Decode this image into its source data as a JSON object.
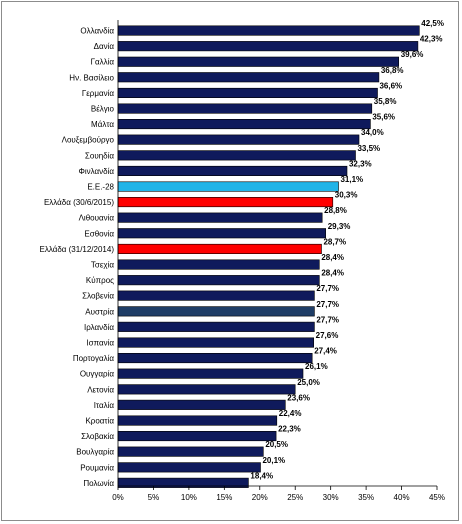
{
  "chart_data": {
    "type": "bar",
    "orientation": "horizontal",
    "categories": [
      "Ολλανδία",
      "Δανία",
      "Γαλλία",
      "Ην. Βασίλειο",
      "Γερμανία",
      "Βέλγιο",
      "Μάλτα",
      "Λουξεμβούργο",
      "Σουηδία",
      "Φινλανδία",
      "Ε.Ε.-28",
      "Ελλάδα (30/6/2015)",
      "Λιθουανία",
      "Εσθονία",
      "Ελλάδα (31/12/2014)",
      "Τσεχία",
      "Κύπρος",
      "Σλοβενία",
      "Αυστρία",
      "Ιρλανδία",
      "Ισπανία",
      "Πορτογαλία",
      "Ουγγαρία",
      "Λετονία",
      "Ιταλία",
      "Κροατία",
      "Σλοβακία",
      "Βουλγαρία",
      "Ρουμανία",
      "Πολωνία"
    ],
    "values": [
      42.5,
      42.3,
      39.6,
      36.8,
      36.6,
      35.8,
      35.6,
      34.0,
      33.5,
      32.3,
      31.1,
      30.3,
      28.8,
      29.3,
      28.7,
      28.4,
      28.4,
      27.7,
      27.7,
      27.7,
      27.6,
      27.4,
      26.1,
      25.0,
      23.6,
      22.4,
      22.3,
      20.5,
      20.1,
      18.4
    ],
    "value_labels": [
      "42,5%",
      "42,3%",
      "39,6%",
      "36,8%",
      "36,6%",
      "35,8%",
      "35,6%",
      "34,0%",
      "33,5%",
      "32,3%",
      "31,1%",
      "30,3%",
      "28,8%",
      "29,3%",
      "28,7%",
      "28,4%",
      "28,4%",
      "27,7%",
      "27,7%",
      "27,7%",
      "27,6%",
      "27,4%",
      "26,1%",
      "25,0%",
      "23,6%",
      "22,4%",
      "22,3%",
      "20,5%",
      "20,1%",
      "18,4%"
    ],
    "bar_colors": [
      "#0f1a5c",
      "#0f1a5c",
      "#0f1a5c",
      "#0f1a5c",
      "#0f1a5c",
      "#0f1a5c",
      "#0f1a5c",
      "#0f1a5c",
      "#0f1a5c",
      "#0f1a5c",
      "#22b4e8",
      "#ff0000",
      "#0f1a5c",
      "#0f1a5c",
      "#ff0000",
      "#0f1a5c",
      "#0f1a5c",
      "#0f1a5c",
      "#1f3d66",
      "#0f1a5c",
      "#0f1a5c",
      "#0f1a5c",
      "#0f1a5c",
      "#0f1a5c",
      "#0f1a5c",
      "#0f1a5c",
      "#0f1a5c",
      "#0f1a5c",
      "#0f1a5c",
      "#0f1a5c"
    ],
    "xlim": [
      0,
      45
    ],
    "xticks": [
      0,
      5,
      10,
      15,
      20,
      25,
      30,
      35,
      40,
      45
    ],
    "xtick_labels": [
      "0%",
      "5%",
      "10%",
      "15%",
      "20%",
      "25%",
      "30%",
      "35%",
      "40%",
      "45%"
    ],
    "grid": false,
    "legend": "none",
    "title": "",
    "xlabel": "",
    "ylabel": ""
  }
}
